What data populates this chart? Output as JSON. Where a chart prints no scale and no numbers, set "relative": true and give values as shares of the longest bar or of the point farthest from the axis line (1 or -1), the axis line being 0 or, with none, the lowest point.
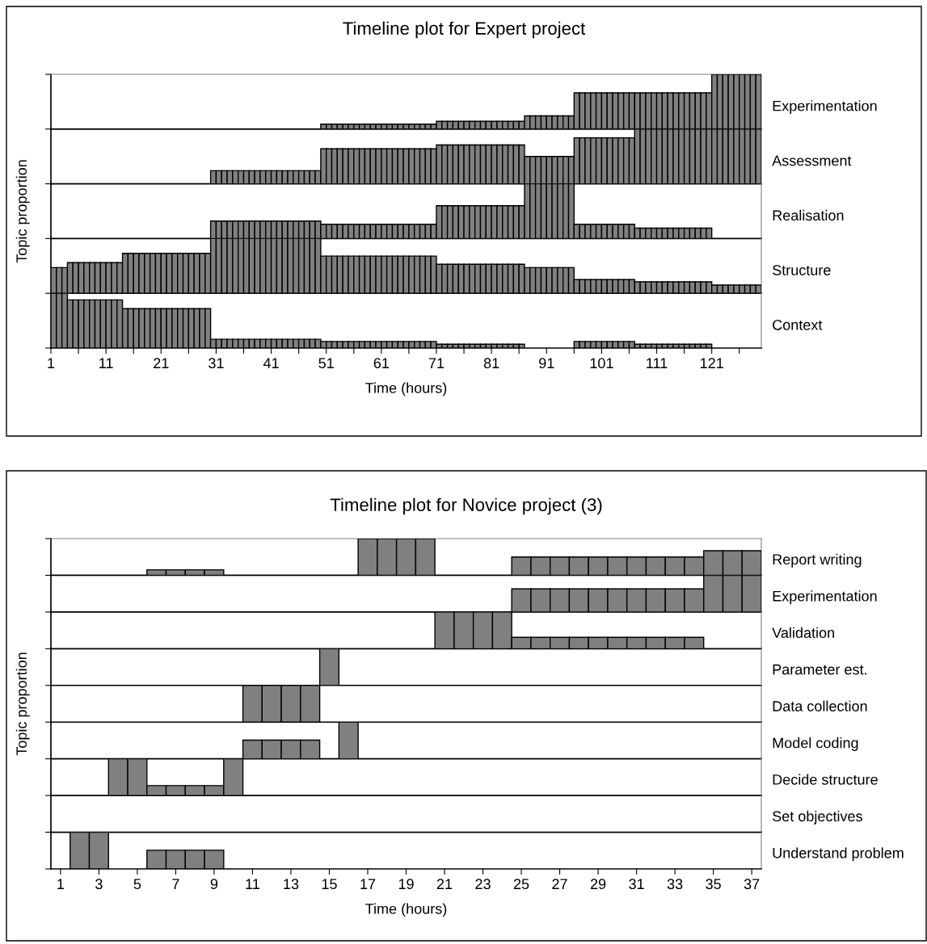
{
  "chart_data": [
    {
      "type": "bar",
      "title": "Timeline plot for Expert project",
      "relative": true,
      "tick_labels": false,
      "xlim": [
        0.5,
        129.5
      ],
      "x": [
        50,
        51,
        52,
        53,
        54,
        55,
        56,
        57,
        58,
        59,
        60,
        61,
        62,
        63,
        64,
        65,
        66,
        67,
        68,
        69,
        70,
        71,
        72,
        73,
        74,
        75,
        76,
        77,
        78,
        79,
        80,
        81,
        82,
        83,
        84,
        85,
        86,
        87,
        88,
        89,
        90,
        91,
        92,
        93,
        94,
        95,
        96,
        97,
        98,
        99,
        100,
        101,
        102,
        103,
        104,
        105,
        106,
        107,
        108,
        109,
        110,
        111,
        112,
        113,
        114,
        115,
        116,
        117,
        118,
        119,
        120,
        121,
        122,
        123,
        124,
        125,
        126,
        127,
        128,
        129
      ],
      "series": [
        {
          "name": "Experimentation",
          "color": "#808080",
          "values": [
            0.09,
            0.09,
            0.09,
            0.09,
            0.09,
            0.09,
            0.09,
            0.09,
            0.09,
            0.09,
            0.09,
            0.09,
            0.09,
            0.09,
            0.09,
            0.09,
            0.09,
            0.09,
            0.09,
            0.09,
            0.09,
            0.14,
            0.14,
            0.14,
            0.14,
            0.14,
            0.14,
            0.14,
            0.14,
            0.14,
            0.14,
            0.14,
            0.14,
            0.14,
            0.14,
            0.14,
            0.14,
            0.24,
            0.24,
            0.24,
            0.24,
            0.24,
            0.24,
            0.24,
            0.24,
            0.24,
            0.66,
            0.66,
            0.66,
            0.66,
            0.66,
            0.66,
            0.66,
            0.66,
            0.66,
            0.66,
            0.66,
            0.66,
            0.66,
            0.66,
            0.66,
            0.66,
            0.66,
            0.66,
            0.66,
            0.66,
            0.66,
            0.66,
            0.66,
            0.66,
            0.66,
            1,
            1,
            1,
            1,
            1,
            1,
            1,
            1,
            1
          ]
        }
      ]
    },
    {
      "type": "bar",
      "relative": true,
      "tick_labels": false,
      "xlim": [
        0.5,
        129.5
      ],
      "x": [
        30,
        31,
        32,
        33,
        34,
        35,
        36,
        37,
        38,
        39,
        40,
        41,
        42,
        43,
        44,
        45,
        46,
        47,
        48,
        49,
        50,
        51,
        52,
        53,
        54,
        55,
        56,
        57,
        58,
        59,
        60,
        61,
        62,
        63,
        64,
        65,
        66,
        67,
        68,
        69,
        70,
        71,
        72,
        73,
        74,
        75,
        76,
        77,
        78,
        79,
        80,
        81,
        82,
        83,
        84,
        85,
        86,
        87,
        88,
        89,
        90,
        91,
        92,
        93,
        94,
        95,
        96,
        97,
        98,
        99,
        100,
        101,
        102,
        103,
        104,
        105,
        106,
        107,
        108,
        109,
        110,
        111,
        112,
        113,
        114,
        115,
        116,
        117,
        118,
        119,
        120,
        121,
        122,
        123,
        124,
        125,
        126,
        127,
        128,
        129
      ],
      "series": [
        {
          "name": "Assessment",
          "color": "#808080",
          "values": [
            0.24,
            0.24,
            0.24,
            0.24,
            0.24,
            0.24,
            0.24,
            0.24,
            0.24,
            0.24,
            0.24,
            0.24,
            0.24,
            0.24,
            0.24,
            0.24,
            0.24,
            0.24,
            0.24,
            0.24,
            0.64,
            0.64,
            0.64,
            0.64,
            0.64,
            0.64,
            0.64,
            0.64,
            0.64,
            0.64,
            0.64,
            0.64,
            0.64,
            0.64,
            0.64,
            0.64,
            0.64,
            0.64,
            0.64,
            0.64,
            0.64,
            0.71,
            0.71,
            0.71,
            0.71,
            0.71,
            0.71,
            0.71,
            0.71,
            0.71,
            0.71,
            0.71,
            0.71,
            0.71,
            0.71,
            0.71,
            0.71,
            0.5,
            0.5,
            0.5,
            0.5,
            0.5,
            0.5,
            0.5,
            0.5,
            0.5,
            0.84,
            0.84,
            0.84,
            0.84,
            0.84,
            0.84,
            0.84,
            0.84,
            0.84,
            0.84,
            0.84,
            1,
            1,
            1,
            1,
            1,
            1,
            1,
            1,
            1,
            1,
            1,
            1,
            1,
            1,
            1,
            1,
            1,
            1,
            1,
            1,
            1,
            1,
            1
          ]
        }
      ]
    },
    {
      "type": "bar",
      "ylabel": "Topic proportion",
      "relative": true,
      "tick_labels": false,
      "xlim": [
        0.5,
        129.5
      ],
      "x": [
        30,
        31,
        32,
        33,
        34,
        35,
        36,
        37,
        38,
        39,
        40,
        41,
        42,
        43,
        44,
        45,
        46,
        47,
        48,
        49,
        50,
        51,
        52,
        53,
        54,
        55,
        56,
        57,
        58,
        59,
        60,
        61,
        62,
        63,
        64,
        65,
        66,
        67,
        68,
        69,
        70,
        71,
        72,
        73,
        74,
        75,
        76,
        77,
        78,
        79,
        80,
        81,
        82,
        83,
        84,
        85,
        86,
        87,
        88,
        89,
        90,
        91,
        92,
        93,
        94,
        95,
        96,
        97,
        98,
        99,
        100,
        101,
        102,
        103,
        104,
        105,
        106,
        107,
        108,
        109,
        110,
        111,
        112,
        113,
        114,
        115,
        116,
        117,
        118,
        119,
        120
      ],
      "series": [
        {
          "name": "Realisation",
          "color": "#808080",
          "values": [
            0.32,
            0.32,
            0.32,
            0.32,
            0.32,
            0.32,
            0.32,
            0.32,
            0.32,
            0.32,
            0.32,
            0.32,
            0.32,
            0.32,
            0.32,
            0.32,
            0.32,
            0.32,
            0.32,
            0.32,
            0.26,
            0.26,
            0.26,
            0.26,
            0.26,
            0.26,
            0.26,
            0.26,
            0.26,
            0.26,
            0.26,
            0.26,
            0.26,
            0.26,
            0.26,
            0.26,
            0.26,
            0.26,
            0.26,
            0.26,
            0.26,
            0.6,
            0.6,
            0.6,
            0.6,
            0.6,
            0.6,
            0.6,
            0.6,
            0.6,
            0.6,
            0.6,
            0.6,
            0.6,
            0.6,
            0.6,
            0.6,
            1,
            1,
            1,
            1,
            1,
            1,
            1,
            1,
            1,
            0.26,
            0.26,
            0.26,
            0.26,
            0.26,
            0.26,
            0.26,
            0.26,
            0.26,
            0.26,
            0.26,
            0.19,
            0.19,
            0.19,
            0.19,
            0.19,
            0.19,
            0.19,
            0.19,
            0.19,
            0.19,
            0.19,
            0.19,
            0.19,
            0.19
          ]
        }
      ]
    },
    {
      "type": "bar",
      "relative": true,
      "tick_labels": false,
      "xlim": [
        0.5,
        129.5
      ],
      "x": [
        1,
        2,
        3,
        4,
        5,
        6,
        7,
        8,
        9,
        10,
        11,
        12,
        13,
        14,
        15,
        16,
        17,
        18,
        19,
        20,
        21,
        22,
        23,
        24,
        25,
        26,
        27,
        28,
        29,
        30,
        31,
        32,
        33,
        34,
        35,
        36,
        37,
        38,
        39,
        40,
        41,
        42,
        43,
        44,
        45,
        46,
        47,
        48,
        49,
        50,
        51,
        52,
        53,
        54,
        55,
        56,
        57,
        58,
        59,
        60,
        61,
        62,
        63,
        64,
        65,
        66,
        67,
        68,
        69,
        70,
        71,
        72,
        73,
        74,
        75,
        76,
        77,
        78,
        79,
        80,
        81,
        82,
        83,
        84,
        85,
        86,
        87,
        88,
        89,
        90,
        91,
        92,
        93,
        94,
        95,
        96,
        97,
        98,
        99,
        100,
        101,
        102,
        103,
        104,
        105,
        106,
        107,
        108,
        109,
        110,
        111,
        112,
        113,
        114,
        115,
        116,
        117,
        118,
        119,
        120,
        121,
        122,
        123,
        124,
        125,
        126,
        127,
        128,
        129
      ],
      "series": [
        {
          "name": "Structure",
          "color": "#808080",
          "values": [
            0.47,
            0.47,
            0.47,
            0.56,
            0.56,
            0.56,
            0.56,
            0.56,
            0.56,
            0.56,
            0.56,
            0.56,
            0.56,
            0.73,
            0.73,
            0.73,
            0.73,
            0.73,
            0.73,
            0.73,
            0.73,
            0.73,
            0.73,
            0.73,
            0.73,
            0.73,
            0.73,
            0.73,
            0.73,
            1,
            1,
            1,
            1,
            1,
            1,
            1,
            1,
            1,
            1,
            1,
            1,
            1,
            1,
            1,
            1,
            1,
            1,
            1,
            1,
            0.68,
            0.68,
            0.68,
            0.68,
            0.68,
            0.68,
            0.68,
            0.68,
            0.68,
            0.68,
            0.68,
            0.68,
            0.68,
            0.68,
            0.68,
            0.68,
            0.68,
            0.68,
            0.68,
            0.68,
            0.68,
            0.53,
            0.53,
            0.53,
            0.53,
            0.53,
            0.53,
            0.53,
            0.53,
            0.53,
            0.53,
            0.53,
            0.53,
            0.53,
            0.53,
            0.53,
            0.53,
            0.47,
            0.47,
            0.47,
            0.47,
            0.47,
            0.47,
            0.47,
            0.47,
            0.47,
            0.25,
            0.25,
            0.25,
            0.25,
            0.25,
            0.25,
            0.25,
            0.25,
            0.25,
            0.25,
            0.25,
            0.21,
            0.21,
            0.21,
            0.21,
            0.21,
            0.21,
            0.21,
            0.21,
            0.21,
            0.21,
            0.21,
            0.21,
            0.21,
            0.21,
            0.15,
            0.15,
            0.15,
            0.15,
            0.15,
            0.15,
            0.15,
            0.15,
            0.15
          ]
        }
      ]
    },
    {
      "type": "bar",
      "xlabel": "Time (hours)",
      "relative": true,
      "tick_labels": "x",
      "xlim": [
        0.5,
        129.5
      ],
      "x": [
        1,
        2,
        3,
        4,
        5,
        6,
        7,
        8,
        9,
        10,
        11,
        12,
        13,
        14,
        15,
        16,
        17,
        18,
        19,
        20,
        21,
        22,
        23,
        24,
        25,
        26,
        27,
        28,
        29,
        30,
        31,
        32,
        33,
        34,
        35,
        36,
        37,
        38,
        39,
        40,
        41,
        42,
        43,
        44,
        45,
        46,
        47,
        48,
        49,
        50,
        51,
        52,
        53,
        54,
        55,
        56,
        57,
        58,
        59,
        60,
        61,
        62,
        63,
        64,
        65,
        66,
        67,
        68,
        69,
        70,
        71,
        72,
        73,
        74,
        75,
        76,
        77,
        78,
        79,
        80,
        81,
        82,
        83,
        84,
        85,
        86,
        96,
        97,
        98,
        99,
        100,
        101,
        102,
        103,
        104,
        105,
        106,
        107,
        108,
        109,
        110,
        111,
        112,
        113,
        114,
        115,
        116,
        117,
        118,
        119,
        120
      ],
      "xticks": [
        {
          "value": 0.5,
          "label": "1"
        },
        {
          "value": 5.5,
          "label": null
        },
        {
          "value": 10.5,
          "label": "11"
        },
        {
          "value": 15.5,
          "label": null
        },
        {
          "value": 20.5,
          "label": "21"
        },
        {
          "value": 25.5,
          "label": null
        },
        {
          "value": 30.5,
          "label": "31"
        },
        {
          "value": 35.5,
          "label": null
        },
        {
          "value": 40.5,
          "label": "41"
        },
        {
          "value": 45.5,
          "label": null
        },
        {
          "value": 50.5,
          "label": "51"
        },
        {
          "value": 55.5,
          "label": null
        },
        {
          "value": 60.5,
          "label": "61"
        },
        {
          "value": 65.5,
          "label": null
        },
        {
          "value": 70.5,
          "label": "71"
        },
        {
          "value": 75.5,
          "label": null
        },
        {
          "value": 80.5,
          "label": "81"
        },
        {
          "value": 85.5,
          "label": null
        },
        {
          "value": 90.5,
          "label": "91"
        },
        {
          "value": 95.5,
          "label": null
        },
        {
          "value": 100.5,
          "label": "101"
        },
        {
          "value": 105.5,
          "label": null
        },
        {
          "value": 110.5,
          "label": "111"
        },
        {
          "value": 115.5,
          "label": null
        },
        {
          "value": 120.5,
          "label": "121"
        },
        {
          "value": 125.5,
          "label": null
        }
      ],
      "series": [
        {
          "name": "Context",
          "color": "#808080",
          "values": [
            1,
            1,
            1,
            0.88,
            0.88,
            0.88,
            0.88,
            0.88,
            0.88,
            0.88,
            0.88,
            0.88,
            0.88,
            0.72,
            0.72,
            0.72,
            0.72,
            0.72,
            0.72,
            0.72,
            0.72,
            0.72,
            0.72,
            0.72,
            0.72,
            0.72,
            0.72,
            0.72,
            0.72,
            0.16,
            0.16,
            0.16,
            0.16,
            0.16,
            0.16,
            0.16,
            0.16,
            0.16,
            0.16,
            0.16,
            0.16,
            0.16,
            0.16,
            0.16,
            0.16,
            0.16,
            0.16,
            0.16,
            0.16,
            0.12,
            0.12,
            0.12,
            0.12,
            0.12,
            0.12,
            0.12,
            0.12,
            0.12,
            0.12,
            0.12,
            0.12,
            0.12,
            0.12,
            0.12,
            0.12,
            0.12,
            0.12,
            0.12,
            0.12,
            0.12,
            0.07,
            0.07,
            0.07,
            0.07,
            0.07,
            0.07,
            0.07,
            0.07,
            0.07,
            0.07,
            0.07,
            0.07,
            0.07,
            0.07,
            0.07,
            0.07,
            0.12,
            0.12,
            0.12,
            0.12,
            0.12,
            0.12,
            0.12,
            0.12,
            0.12,
            0.12,
            0.12,
            0.07,
            0.07,
            0.07,
            0.07,
            0.07,
            0.07,
            0.07,
            0.07,
            0.07,
            0.07,
            0.07,
            0.07,
            0.07,
            0.07
          ]
        }
      ]
    },
    {
      "type": "bar",
      "title": "Timeline plot for Novice project (3)",
      "relative": true,
      "tick_labels": false,
      "xlim": [
        0.5,
        37.5
      ],
      "x": [
        6,
        7,
        8,
        9,
        17,
        18,
        19,
        20,
        25,
        26,
        27,
        28,
        29,
        30,
        31,
        32,
        33,
        34,
        35,
        36,
        37
      ],
      "series": [
        {
          "name": "Report writing",
          "color": "#808080",
          "values": [
            0.15,
            0.15,
            0.15,
            0.15,
            1,
            1,
            1,
            1,
            0.5,
            0.5,
            0.5,
            0.5,
            0.5,
            0.5,
            0.5,
            0.5,
            0.5,
            0.5,
            0.67,
            0.67,
            0.67
          ]
        }
      ]
    },
    {
      "type": "bar",
      "relative": true,
      "tick_labels": false,
      "xlim": [
        0.5,
        37.5
      ],
      "x": [
        25,
        26,
        27,
        28,
        29,
        30,
        31,
        32,
        33,
        34,
        35,
        36,
        37
      ],
      "series": [
        {
          "name": "Experimentation",
          "color": "#808080",
          "values": [
            0.63,
            0.63,
            0.63,
            0.63,
            0.63,
            0.63,
            0.63,
            0.63,
            0.63,
            0.63,
            1,
            1,
            1
          ]
        }
      ]
    },
    {
      "type": "bar",
      "relative": true,
      "tick_labels": false,
      "xlim": [
        0.5,
        37.5
      ],
      "x": [
        21,
        22,
        23,
        24,
        25,
        26,
        27,
        28,
        29,
        30,
        31,
        32,
        33,
        34
      ],
      "series": [
        {
          "name": "Validation",
          "color": "#808080",
          "values": [
            1,
            1,
            1,
            1,
            0.31,
            0.31,
            0.31,
            0.31,
            0.31,
            0.31,
            0.31,
            0.31,
            0.31,
            0.31
          ]
        }
      ]
    },
    {
      "type": "bar",
      "relative": true,
      "tick_labels": false,
      "xlim": [
        0.5,
        37.5
      ],
      "x": [
        15
      ],
      "series": [
        {
          "name": "Parameter est.",
          "color": "#808080",
          "values": [
            1
          ]
        }
      ]
    },
    {
      "type": "bar",
      "ylabel": "Topic proportion",
      "relative": true,
      "tick_labels": false,
      "xlim": [
        0.5,
        37.5
      ],
      "x": [
        11,
        12,
        13,
        14
      ],
      "series": [
        {
          "name": "Data collection",
          "color": "#808080",
          "values": [
            1,
            1,
            1,
            1
          ]
        }
      ]
    },
    {
      "type": "bar",
      "relative": true,
      "tick_labels": false,
      "xlim": [
        0.5,
        37.5
      ],
      "x": [
        11,
        12,
        13,
        14,
        16
      ],
      "series": [
        {
          "name": "Model coding",
          "color": "#808080",
          "values": [
            0.51,
            0.51,
            0.51,
            0.51,
            1
          ]
        }
      ]
    },
    {
      "type": "bar",
      "relative": true,
      "tick_labels": false,
      "xlim": [
        0.5,
        37.5
      ],
      "x": [
        4,
        5,
        6,
        7,
        8,
        9,
        10
      ],
      "series": [
        {
          "name": "Decide structure",
          "color": "#808080",
          "values": [
            1,
            1,
            0.27,
            0.27,
            0.27,
            0.27,
            1
          ]
        }
      ]
    },
    {
      "type": "other",
      "series": [
        {
          "name": "Set objectives"
        }
      ]
    },
    {
      "type": "bar",
      "xlabel": "Time (hours)",
      "relative": true,
      "tick_labels": "x",
      "xlim": [
        0.5,
        37.5
      ],
      "x": [
        2,
        3,
        6,
        7,
        8,
        9
      ],
      "xticks": [
        1,
        3,
        5,
        7,
        9,
        11,
        13,
        15,
        17,
        19,
        21,
        23,
        25,
        27,
        29,
        31,
        33,
        35,
        37
      ],
      "series": [
        {
          "name": "Understand problem",
          "color": "#808080",
          "values": [
            1,
            1,
            0.51,
            0.51,
            0.51,
            0.51
          ]
        }
      ]
    }
  ]
}
